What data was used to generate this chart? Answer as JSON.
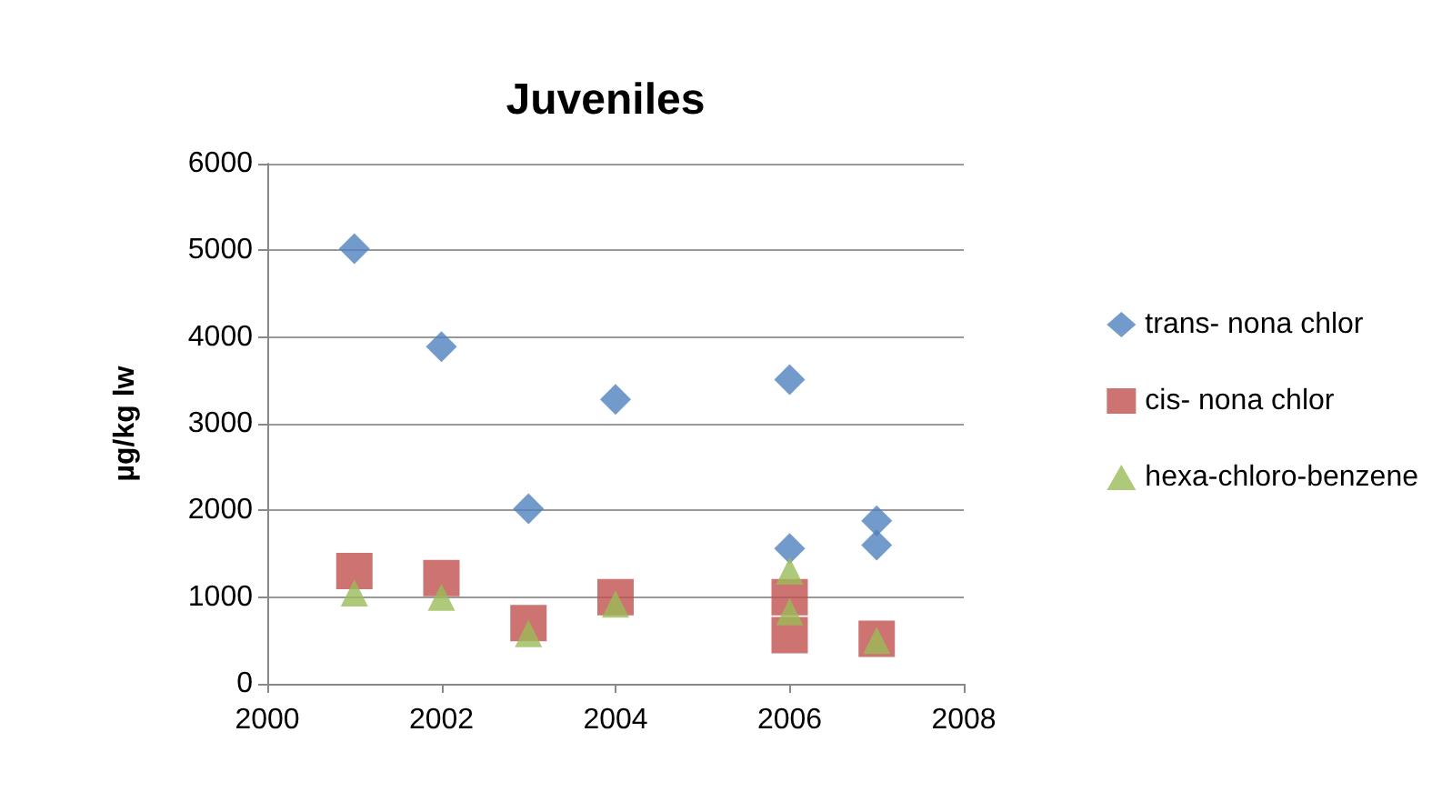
{
  "chart_data": {
    "type": "scatter",
    "title": "Juveniles",
    "ylabel": "µg/kg lw",
    "xlim": [
      2000,
      2008
    ],
    "xticks": [
      2000,
      2002,
      2004,
      2006,
      2008
    ],
    "ylim": [
      0,
      6000
    ],
    "yticks": [
      0,
      1000,
      2000,
      3000,
      4000,
      5000,
      6000
    ],
    "grid": "y",
    "legend": "right",
    "series": [
      {
        "name": "trans- nona chlor",
        "color": "#4f81bd",
        "marker": "diamond",
        "x": [
          2001,
          2002,
          2003,
          2004,
          2006,
          2006,
          2007,
          2007
        ],
        "values": [
          5020,
          3890,
          2020,
          3280,
          3510,
          1560,
          1880,
          1600
        ]
      },
      {
        "name": "cis- nona chlor",
        "color": "#c0504d",
        "marker": "square",
        "x": [
          2001,
          2002,
          2003,
          2004,
          2006,
          2006,
          2007
        ],
        "values": [
          1300,
          1220,
          700,
          1000,
          1000,
          560,
          520
        ]
      },
      {
        "name": "hexa-chloro-benzene",
        "color": "#9bbb59",
        "marker": "triangle",
        "x": [
          2001,
          2002,
          2003,
          2004,
          2006,
          2006,
          2007
        ],
        "values": [
          1050,
          1000,
          580,
          920,
          1300,
          830,
          500
        ]
      }
    ]
  }
}
